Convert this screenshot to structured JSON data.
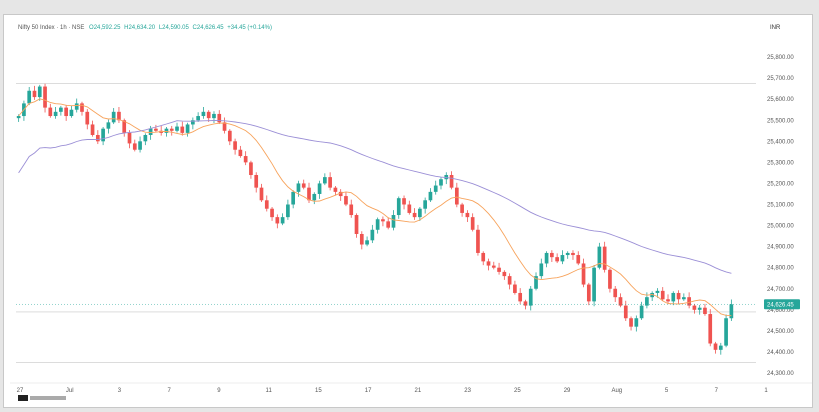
{
  "legend": {
    "symbol": "Nifty 50 Index · 1h · NSE",
    "open": "24,592.25",
    "high": "24,634.20",
    "low": "24,590.05",
    "close": "24,626.45",
    "change": "+34.45 (+0.14%)"
  },
  "currency": "INR",
  "colors": {
    "up": "#26a69a",
    "down": "#ef5350",
    "sma_fast": "#f7a35c",
    "sma_slow": "#9b8fd6",
    "price_tag": "#26a69a"
  },
  "chart_data": {
    "type": "candlestick",
    "ylim": [
      24300,
      25900
    ],
    "y_ticks": [
      "25,800.00",
      "25,700.00",
      "25,600.00",
      "25,500.00",
      "25,400.00",
      "25,300.00",
      "25,200.00",
      "25,100.00",
      "25,000.00",
      "24,900.00",
      "24,800.00",
      "24,700.00",
      "24,600.00",
      "24,500.00",
      "24,400.00",
      "24,300.00"
    ],
    "x_ticks": [
      "27",
      "Jul",
      "3",
      "7",
      "9",
      "11",
      "15",
      "17",
      "21",
      "23",
      "25",
      "29",
      "Aug",
      "5",
      "7",
      "1"
    ],
    "last_price": "24,626.45",
    "reference_lines": [
      25675,
      24590,
      24350
    ],
    "close_series": [
      25520,
      25580,
      25640,
      25610,
      25660,
      25560,
      25520,
      25540,
      25560,
      25520,
      25550,
      25580,
      25540,
      25480,
      25430,
      25400,
      25460,
      25490,
      25540,
      25500,
      25440,
      25390,
      25360,
      25400,
      25430,
      25460,
      25450,
      25440,
      25460,
      25450,
      25470,
      25440,
      25480,
      25500,
      25520,
      25540,
      25510,
      25530,
      25490,
      25450,
      25400,
      25360,
      25330,
      25300,
      25240,
      25180,
      25120,
      25080,
      25040,
      25010,
      25040,
      25100,
      25160,
      25200,
      25180,
      25120,
      25150,
      25200,
      25230,
      25180,
      25160,
      25140,
      25100,
      25050,
      24960,
      24910,
      24930,
      24980,
      25030,
      25020,
      24990,
      25050,
      25130,
      25100,
      25060,
      25040,
      25080,
      25120,
      25160,
      25190,
      25220,
      25240,
      25180,
      25100,
      25060,
      25040,
      24980,
      24870,
      24830,
      24810,
      24800,
      24780,
      24760,
      24720,
      24680,
      24640,
      24620,
      24700,
      24760,
      24820,
      24870,
      24850,
      24830,
      24860,
      24870,
      24860,
      24820,
      24720,
      24640,
      24800,
      24900,
      24790,
      24700,
      24660,
      24620,
      24560,
      24520,
      24560,
      24620,
      24660,
      24680,
      24690,
      24650,
      24640,
      24680,
      24650,
      24660,
      24620,
      24600,
      24610,
      24580,
      24440,
      24410,
      24430,
      24560,
      24626
    ]
  }
}
